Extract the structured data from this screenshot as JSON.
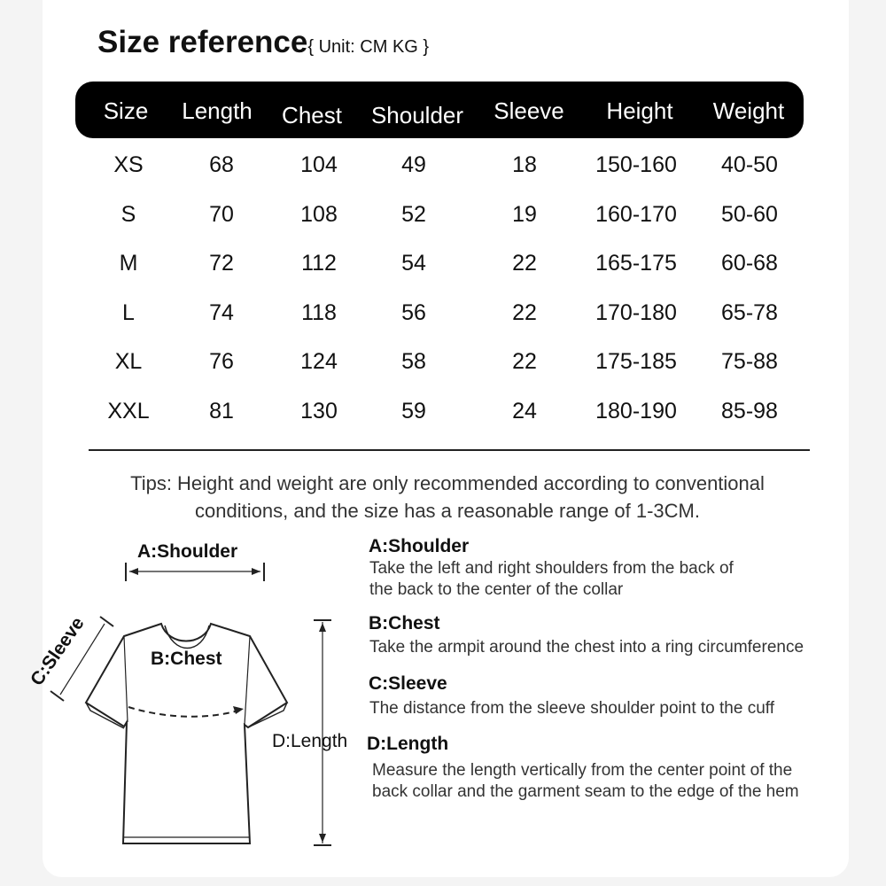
{
  "title": "Size reference",
  "unit": "{ Unit: CM KG }",
  "table": {
    "headers": [
      "Size",
      "Length",
      "Chest",
      "Shoulder",
      "Sleeve",
      "Height",
      "Weight"
    ],
    "rows": [
      [
        "XS",
        "68",
        "104",
        "49",
        "18",
        "150-160",
        "40-50"
      ],
      [
        "S",
        "70",
        "108",
        "52",
        "19",
        "160-170",
        "50-60"
      ],
      [
        "M",
        "72",
        "112",
        "54",
        "22",
        "165-175",
        "60-68"
      ],
      [
        "L",
        "74",
        "118",
        "56",
        "22",
        "170-180",
        "65-78"
      ],
      [
        "XL",
        "76",
        "124",
        "58",
        "22",
        "175-185",
        "75-88"
      ],
      [
        "XXL",
        "81",
        "130",
        "59",
        "24",
        "180-190",
        "85-98"
      ]
    ]
  },
  "tips": [
    "Tips: Height and weight are only recommended according to conventional",
    "conditions, and the size has a reasonable range of 1-3CM."
  ],
  "diagram": {
    "shoulder": "A:Shoulder",
    "chest": "B:Chest",
    "sleeve": "C:Sleeve",
    "length": "D:Length"
  },
  "guide": [
    {
      "label": "A:Shoulder",
      "text": [
        "Take the left and right shoulders from the back of",
        "the back to the center of the collar"
      ]
    },
    {
      "label": "B:Chest",
      "text": [
        "Take the armpit around the chest into a ring circumference"
      ]
    },
    {
      "label": "C:Sleeve",
      "text": [
        "The distance from the sleeve shoulder point to the cuff"
      ]
    },
    {
      "label": "D:Length",
      "text": [
        "Measure the length vertically from the center point of the",
        "back collar and the garment seam to the edge of the hem"
      ]
    }
  ]
}
